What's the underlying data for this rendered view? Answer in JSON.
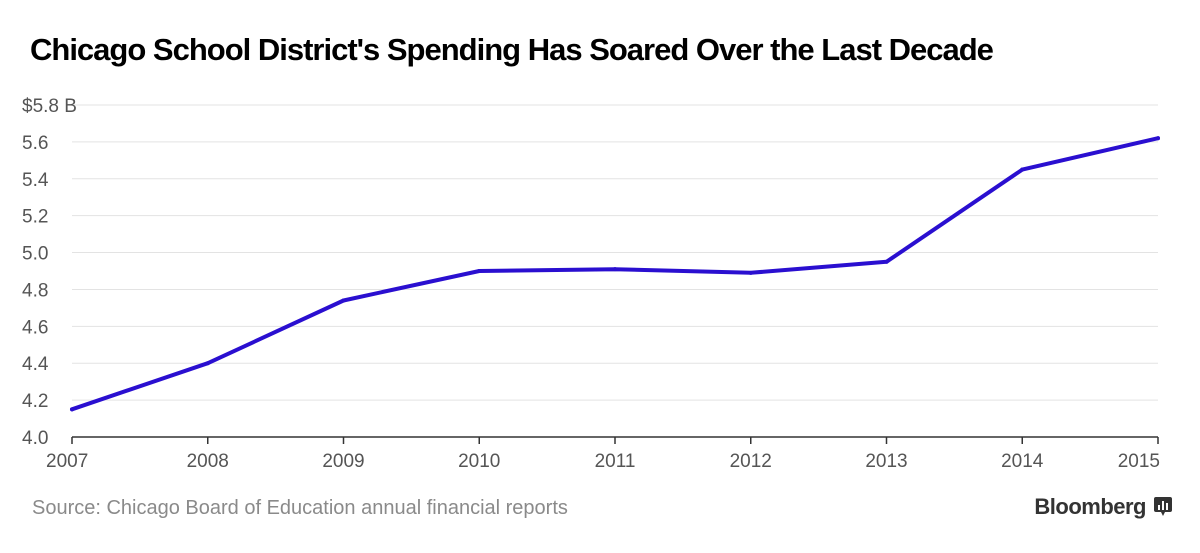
{
  "colors": {
    "line": "#2a0fd0",
    "grid": "#e3e3e3",
    "axis": "#333333",
    "label": "#555555",
    "source": "#8a8a8a"
  },
  "footer": {
    "source": "Source: Chicago Board of Education annual financial reports",
    "brand": "Bloomberg",
    "brand_icon": "bloomberg-terminal-icon"
  },
  "chart_data": {
    "type": "line",
    "title": "Chicago School District's Spending Has Soared Over the Last Decade",
    "xlabel": "",
    "ylabel": "",
    "x": [
      "2007",
      "2008",
      "2009",
      "2010",
      "2011",
      "2012",
      "2013",
      "2014",
      "2015"
    ],
    "series": [
      {
        "values": [
          4.15,
          4.4,
          4.74,
          4.9,
          4.91,
          4.89,
          4.95,
          5.45,
          5.62
        ]
      }
    ],
    "ylim": [
      4.0,
      5.8
    ],
    "y_ticks": [
      4.0,
      4.2,
      4.4,
      4.6,
      4.8,
      5.0,
      5.2,
      5.4,
      5.6,
      5.8
    ],
    "y_tick_labels": [
      "4.0",
      "4.2",
      "4.4",
      "4.6",
      "4.8",
      "5.0",
      "5.2",
      "5.4",
      "5.6",
      "$5.8 B"
    ],
    "grid": true,
    "legend": "none"
  }
}
